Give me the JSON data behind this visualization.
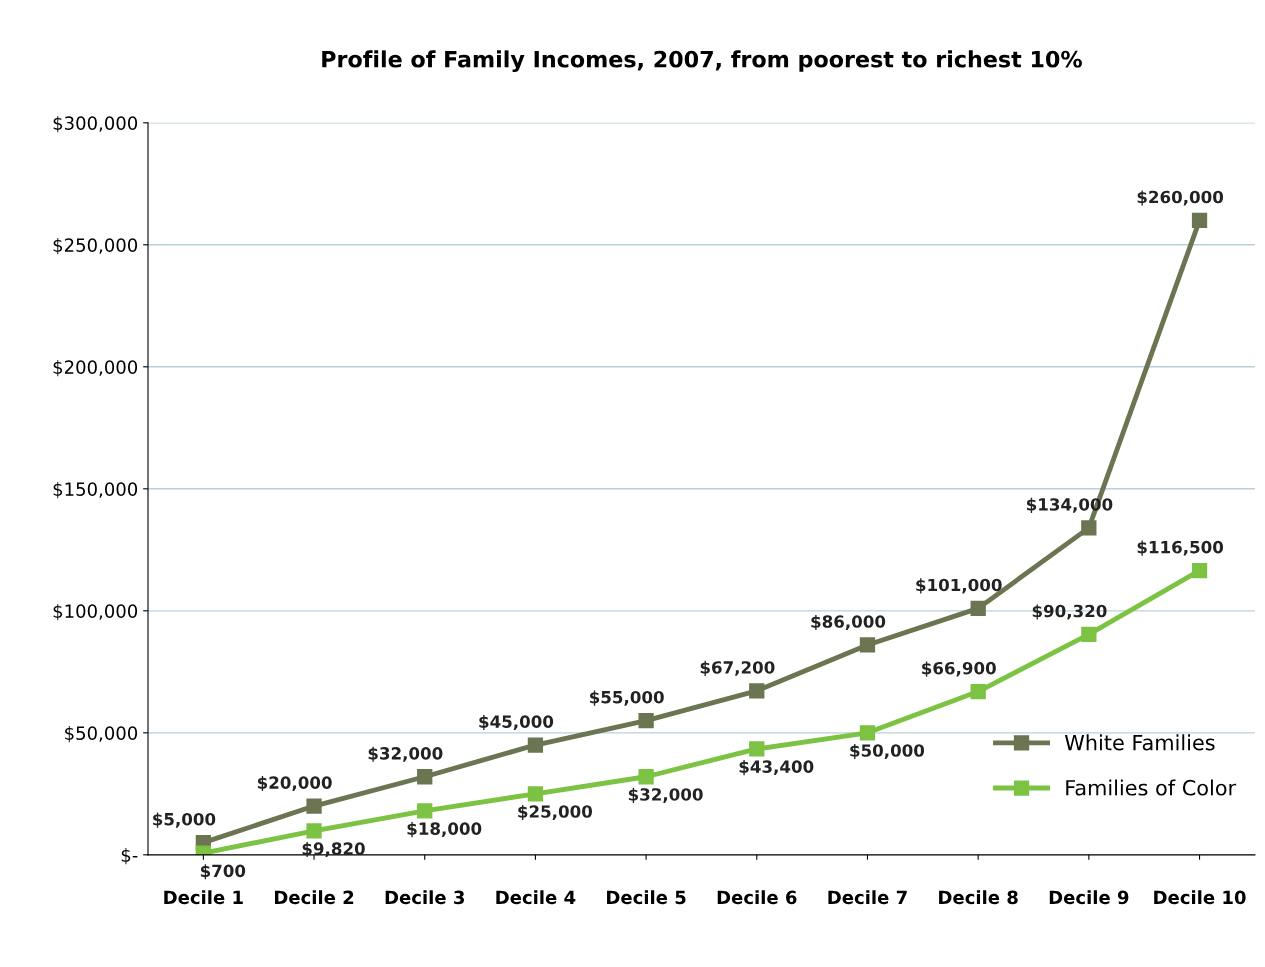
{
  "chart_data": {
    "type": "line",
    "title": "Profile of Family Incomes, 2007, from poorest to richest 10%",
    "categories": [
      "Decile 1",
      "Decile 2",
      "Decile 3",
      "Decile 4",
      "Decile 5",
      "Decile 6",
      "Decile 7",
      "Decile 8",
      "Decile 9",
      "Decile 10"
    ],
    "series": [
      {
        "name": "White Families",
        "color": "#6b7551",
        "values": [
          5000,
          20000,
          32000,
          45000,
          55000,
          67200,
          86000,
          101000,
          134000,
          260000
        ],
        "value_labels": [
          "$5,000",
          "$20,000",
          "$32,000",
          "$45,000",
          "$55,000",
          "$67,200",
          "$86,000",
          "$101,000",
          "$134,000",
          "$260,000"
        ]
      },
      {
        "name": "Families of Color",
        "color": "#7cc243",
        "values": [
          700,
          9820,
          18000,
          25000,
          32000,
          43400,
          50000,
          66900,
          90320,
          116500
        ],
        "value_labels": [
          "$700",
          "$9,820",
          "$18,000",
          "$25,000",
          "$32,000",
          "$43,400",
          "$50,000",
          "$66,900",
          "$90,320",
          "$116,500"
        ]
      }
    ],
    "ylim": [
      0,
      300000
    ],
    "yticks": [
      {
        "value": 0,
        "label": "$-"
      },
      {
        "value": 50000,
        "label": "$50,000"
      },
      {
        "value": 100000,
        "label": "$100,000"
      },
      {
        "value": 150000,
        "label": "$150,000"
      },
      {
        "value": 200000,
        "label": "$200,000"
      },
      {
        "value": 250000,
        "label": "$250,000"
      },
      {
        "value": 300000,
        "label": "$300,000"
      }
    ],
    "grid": "y",
    "legend": "right",
    "marker": "square",
    "line_style": "solid"
  }
}
